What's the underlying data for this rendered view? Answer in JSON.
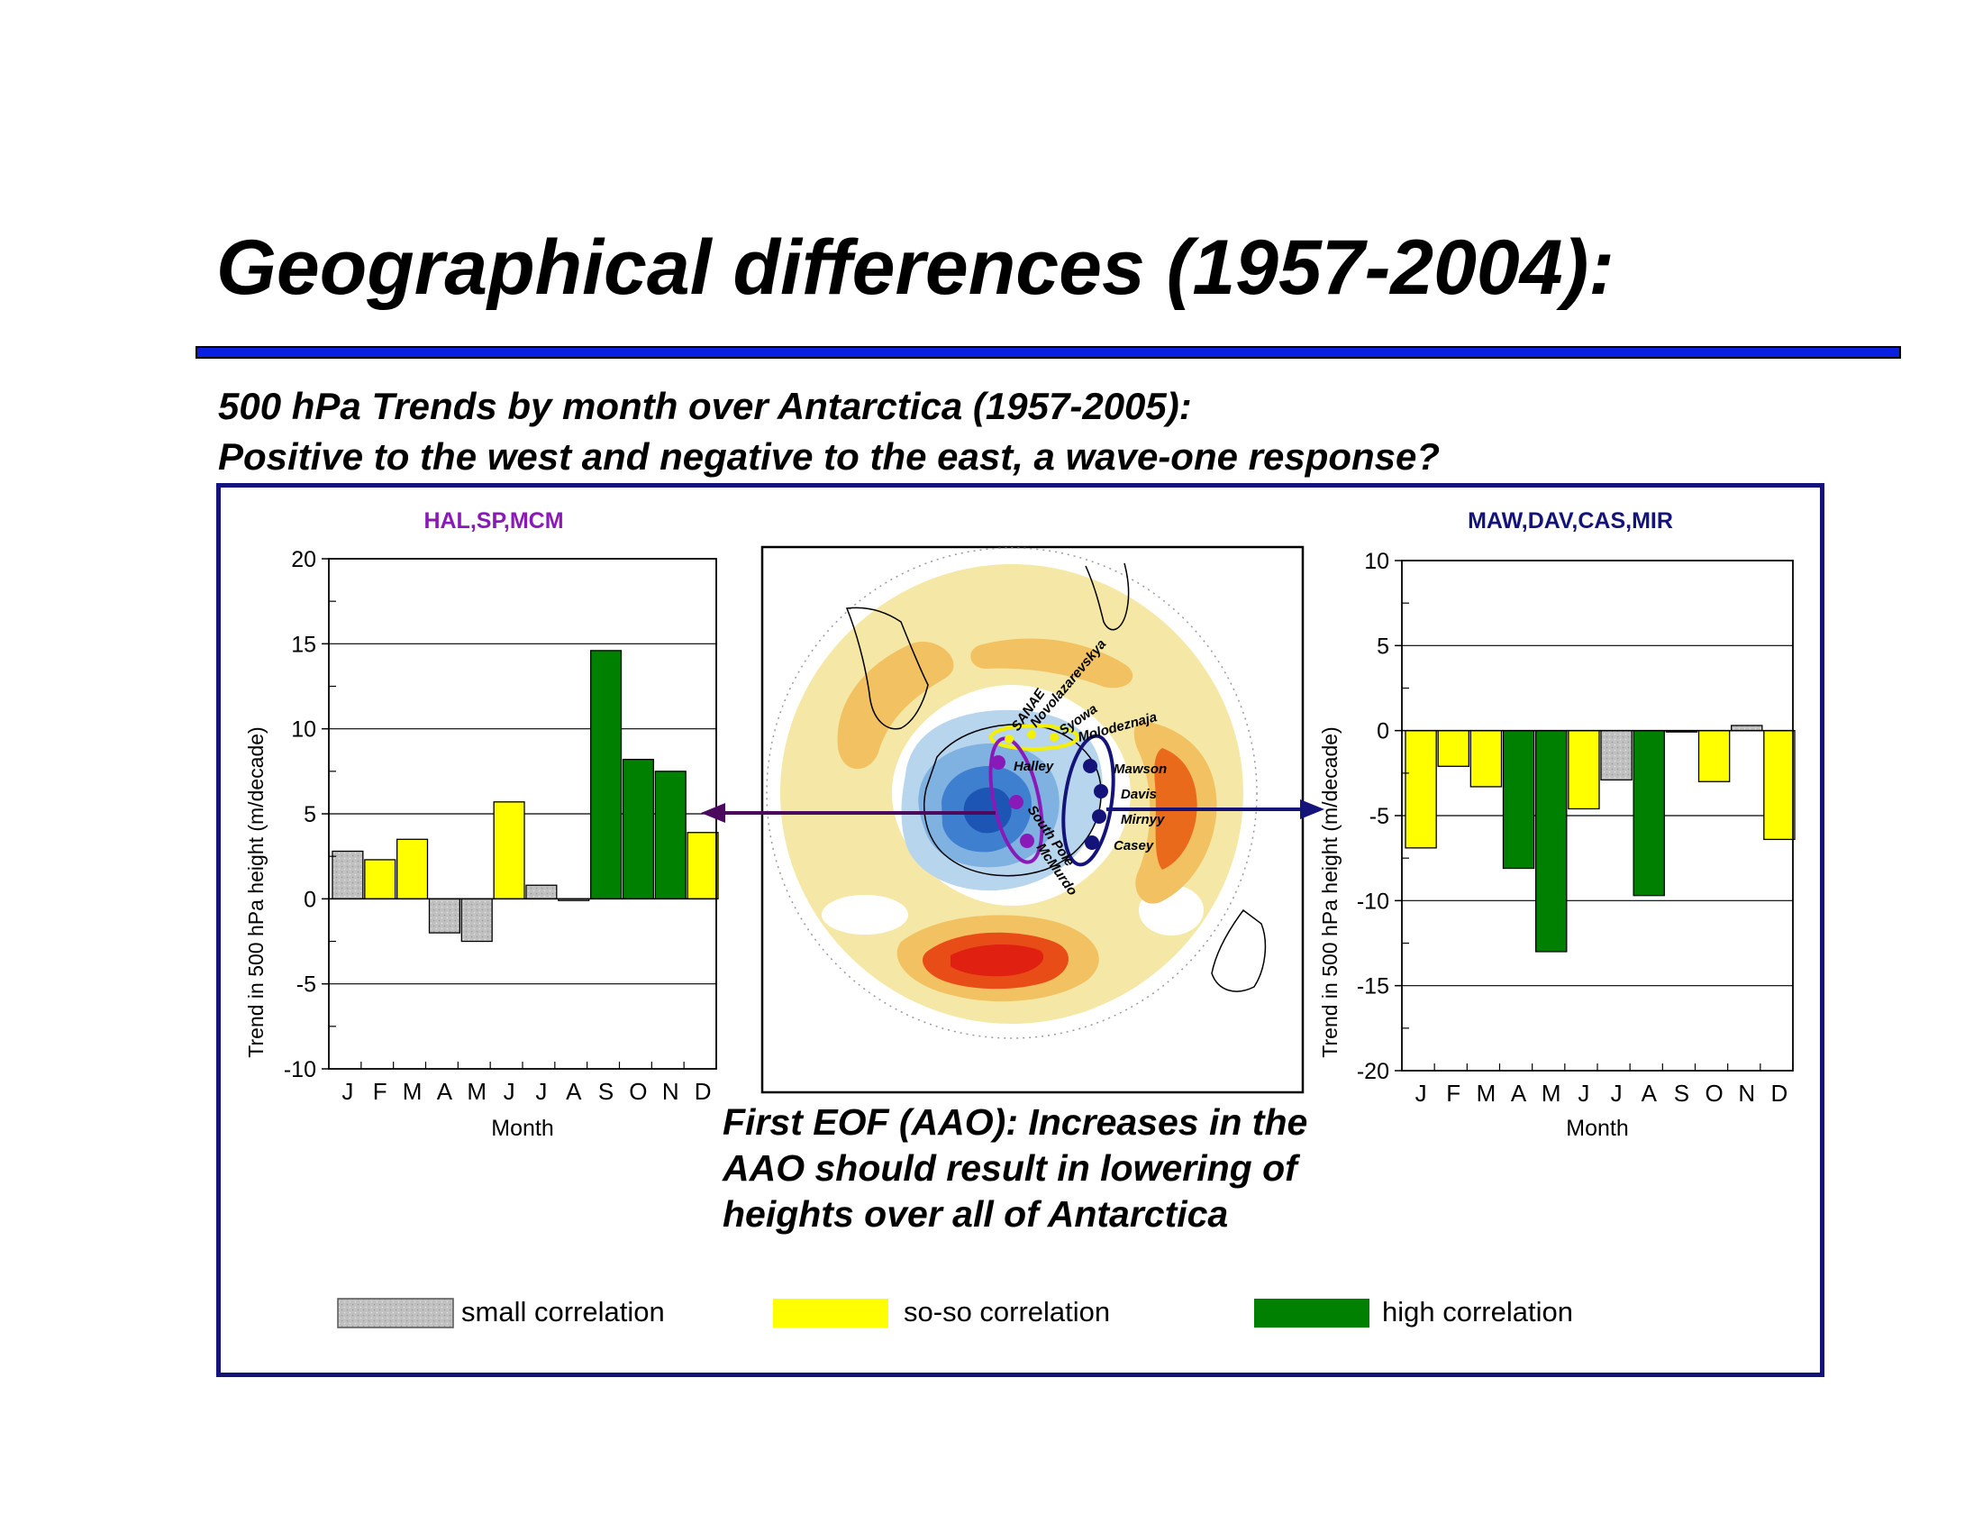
{
  "slide": {
    "title": "Geographical differences (1957-2004):",
    "subtitle_line1": "500 hPa Trends by month over Antarctica (1957-2005):",
    "subtitle_line2": "Positive to the west and negative to the east, a wave-one response?",
    "caption": [
      "First EOF (AAO): Increases in the",
      "AAO should result in lowering of",
      "heights over all of Antarctica"
    ]
  },
  "colors": {
    "small": "#c0c0c0",
    "soso": "#ffff00",
    "high": "#008000",
    "title_rule": "#0a1fe0",
    "frame": "#13137a",
    "west_label": "#8a1ab8",
    "east_label": "#13137a",
    "west_arrow": "#4b0a5e",
    "east_arrow": "#13137a"
  },
  "legend": [
    {
      "label": "small correlation",
      "category": "small"
    },
    {
      "label": "so-so correlation",
      "category": "soso"
    },
    {
      "label": "high correlation",
      "category": "high"
    }
  ],
  "map": {
    "stations_west": [
      "Halley",
      "South Pole",
      "McMurdo"
    ],
    "stations_north": [
      "SANAE",
      "Novolazarevskya",
      "Syowa",
      "Molodeznaja"
    ],
    "stations_east": [
      "Mawson",
      "Davis",
      "Mirnyy",
      "Casey"
    ]
  },
  "chart_data": [
    {
      "type": "bar",
      "title": "HAL,SP,MCM",
      "xlabel": "Month",
      "ylabel": "Trend in 500 hPa height (m/decade)",
      "ylim": [
        -10,
        20
      ],
      "yticks": [
        -10,
        -5,
        0,
        5,
        10,
        15,
        20
      ],
      "grid": true,
      "categories": [
        "J",
        "F",
        "M",
        "A",
        "M",
        "J",
        "J",
        "A",
        "S",
        "O",
        "N",
        "D"
      ],
      "values": [
        2.8,
        2.3,
        3.5,
        -2.0,
        -2.5,
        5.7,
        0.8,
        -0.1,
        14.6,
        8.2,
        7.5,
        3.9
      ],
      "correlation": [
        "small",
        "soso",
        "soso",
        "small",
        "small",
        "soso",
        "small",
        "small",
        "high",
        "high",
        "high",
        "soso"
      ]
    },
    {
      "type": "bar",
      "title": "MAW,DAV,CAS,MIR",
      "xlabel": "Month",
      "ylabel": "Trend in 500 hPa height (m/decade)",
      "ylim": [
        -20,
        10
      ],
      "yticks": [
        -20,
        -15,
        -10,
        -5,
        0,
        5,
        10
      ],
      "grid": true,
      "categories": [
        "J",
        "F",
        "M",
        "A",
        "M",
        "J",
        "J",
        "A",
        "S",
        "O",
        "N",
        "D"
      ],
      "values": [
        -6.9,
        -2.1,
        -3.3,
        -8.1,
        -13.0,
        -4.6,
        -2.9,
        -9.7,
        0.0,
        -3.0,
        0.3,
        -6.4
      ],
      "correlation": [
        "soso",
        "soso",
        "soso",
        "high",
        "high",
        "soso",
        "small",
        "high",
        "soso",
        "soso",
        "small",
        "soso"
      ]
    }
  ]
}
